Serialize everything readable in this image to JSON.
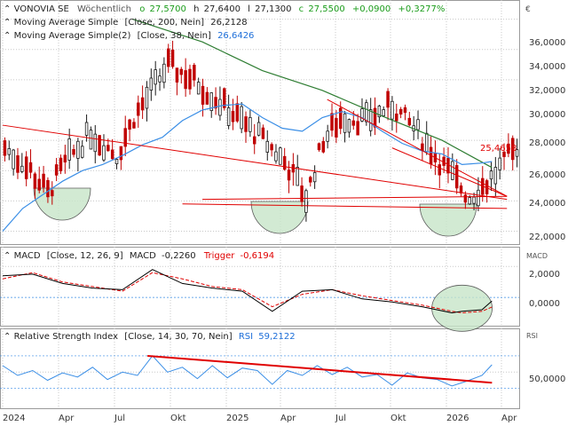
{
  "header": {
    "instrument": "VONOVIA SE",
    "period": "Wöchentlich",
    "o_label": "o",
    "o_value": "27,5700",
    "h_label": "h",
    "h_value": "27,6400",
    "l_label": "l",
    "l_value": "27,1300",
    "c_label": "c",
    "c_value": "27,5500",
    "change": "+0,0900",
    "change_pct": "+0,3277%",
    "currency": "€"
  },
  "colors": {
    "grid": "#c8c8c8",
    "frame": "#9a9a9a",
    "candle_up": "#1a1a1a",
    "candle_down": "#c00000",
    "sma200": "#2e7d32",
    "sma38": "#3a8ee6",
    "trendline": "#e00000",
    "macd": "#000000",
    "trigger": "#e00000",
    "rsi": "#3a8ee6",
    "rsi_trend": "#e00000",
    "highlight": "#c8e6c9",
    "value_red": "#e00000",
    "value_blue": "#1e6fd9",
    "value_green": "#1a9c1a"
  },
  "chart_data": [
    {
      "type": "candlestick",
      "title": "VONOVIA SE",
      "period": "Wöchentlich",
      "ylim": [
        21.5,
        36.8
      ],
      "y_ticks": [
        "22,0000",
        "24,0000",
        "26,0000",
        "28,0000",
        "30,0000",
        "32,0000",
        "34,0000",
        "36,0000"
      ],
      "x_ticks": [
        "2024",
        "Apr",
        "Jul",
        "Okt",
        "2025",
        "Apr",
        "Jul",
        "Okt",
        "2026",
        "Apr"
      ],
      "ohlc": {
        "open": 27.57,
        "high": 27.64,
        "low": 27.13,
        "close": 27.55
      },
      "series": [
        {
          "name": "Moving Average Simple",
          "params": "[Close, 200, Nein]",
          "last": "26,2128"
        },
        {
          "name": "Moving Average Simple(2)",
          "params": "[Close, 38, Nein]",
          "last": "26,6426"
        }
      ],
      "sma200": {
        "x": [
          26,
          40,
          52,
          64,
          76,
          88,
          98
        ],
        "y": [
          36.0,
          34.5,
          32.6,
          31.3,
          29.6,
          28.0,
          26.2
        ]
      },
      "sma38": {
        "x": [
          0,
          4,
          8,
          12,
          16,
          20,
          24,
          28,
          32,
          36,
          40,
          44,
          48,
          52,
          56,
          60,
          64,
          68,
          72,
          76,
          80,
          84,
          88,
          92,
          96,
          98
        ],
        "y": [
          22.0,
          23.5,
          24.4,
          25.3,
          26.0,
          26.4,
          27.0,
          27.7,
          28.2,
          29.3,
          30.0,
          30.3,
          30.4,
          29.5,
          28.8,
          28.6,
          29.5,
          29.9,
          29.5,
          28.6,
          27.8,
          27.3,
          27.1,
          26.4,
          26.5,
          26.6
        ]
      },
      "price_label": "25,4658",
      "annotations": [
        "red trendlines",
        "three round-bottom highlight ellipses"
      ]
    },
    {
      "type": "line",
      "title": "MACD",
      "params": "[Close, 12, 26, 9]",
      "macd_last": "-0,2260",
      "trigger_last": "-0,6194",
      "ylim": [
        -1.6,
        2.7
      ],
      "y_label": "MACD",
      "y_ticks": [
        "2,0000",
        "0,0000"
      ],
      "macd": {
        "x": [
          0,
          6,
          12,
          18,
          24,
          30,
          36,
          42,
          48,
          54,
          60,
          66,
          72,
          78,
          84,
          90,
          92,
          96,
          98
        ],
        "y": [
          1.4,
          1.5,
          0.9,
          0.6,
          0.5,
          1.8,
          0.9,
          0.6,
          0.4,
          -0.9,
          0.4,
          0.5,
          -0.1,
          -0.3,
          -0.6,
          -1.0,
          -0.9,
          -0.8,
          -0.23
        ]
      },
      "trigger": {
        "x": [
          0,
          6,
          12,
          18,
          24,
          30,
          36,
          42,
          48,
          54,
          60,
          66,
          72,
          78,
          84,
          90,
          92,
          96,
          98
        ],
        "y": [
          1.2,
          1.6,
          1.0,
          0.7,
          0.4,
          1.6,
          1.2,
          0.7,
          0.5,
          -0.6,
          0.2,
          0.5,
          0.1,
          -0.2,
          -0.5,
          -0.9,
          -1.0,
          -0.9,
          -0.62
        ]
      }
    },
    {
      "type": "line",
      "title": "Relative Strength Index",
      "params": "[Close, 14, 30, 70, Nein]",
      "rsi_label": "RSI",
      "rsi_last": "59,2122",
      "ylim": [
        10,
        95
      ],
      "y_label": "RSI",
      "y_ticks": [
        "50,0000"
      ],
      "bands": [
        30,
        70
      ],
      "rsi": {
        "x": [
          0,
          3,
          6,
          9,
          12,
          15,
          18,
          21,
          24,
          27,
          30,
          33,
          36,
          39,
          42,
          45,
          48,
          51,
          54,
          57,
          60,
          63,
          66,
          69,
          72,
          75,
          78,
          81,
          84,
          87,
          90,
          93,
          96,
          98
        ],
        "y": [
          58,
          46,
          52,
          40,
          49,
          44,
          56,
          41,
          50,
          46,
          70,
          50,
          56,
          42,
          58,
          43,
          55,
          52,
          35,
          52,
          46,
          58,
          47,
          56,
          44,
          47,
          34,
          49,
          43,
          41,
          33,
          39,
          46,
          59
        ]
      },
      "trend": {
        "x": [
          29,
          98
        ],
        "y": [
          70,
          37
        ]
      }
    }
  ]
}
